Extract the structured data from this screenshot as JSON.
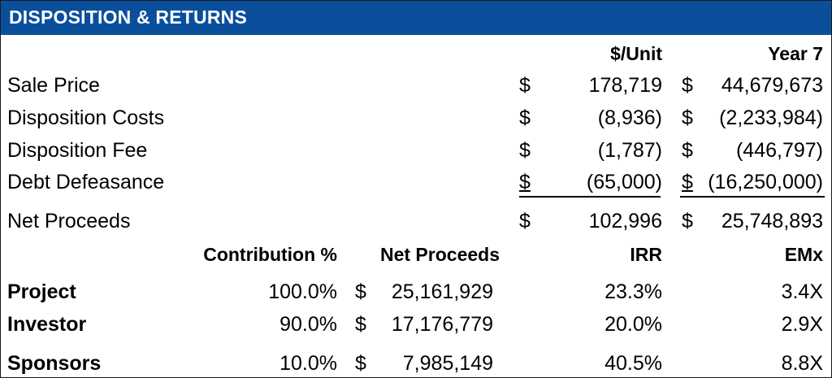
{
  "title": "DISPOSITION & RETURNS",
  "columns": {
    "per_unit": "$/Unit",
    "year": "Year 7"
  },
  "currency_symbol": "$",
  "line_items": [
    {
      "label": "Sale Price",
      "per_unit": "178,719",
      "year": "44,679,673"
    },
    {
      "label": "Disposition Costs",
      "per_unit": "(8,936)",
      "year": "(2,233,984)"
    },
    {
      "label": "Disposition Fee",
      "per_unit": "(1,787)",
      "year": "(446,797)"
    },
    {
      "label": "Debt Defeasance",
      "per_unit": "(65,000)",
      "year": "(16,250,000)"
    }
  ],
  "net": {
    "label": "Net Proceeds",
    "per_unit": "102,996",
    "year": "25,748,893"
  },
  "returns_headers": {
    "contribution": "Contribution %",
    "net_proceeds": "Net Proceeds",
    "irr": "IRR",
    "emx": "EMx"
  },
  "returns": [
    {
      "party": "Project",
      "contribution": "100.0%",
      "net_proceeds": "25,161,929",
      "irr": "23.3%",
      "emx": "3.4X"
    },
    {
      "party": "Investor",
      "contribution": "90.0%",
      "net_proceeds": "17,176,779",
      "irr": "20.0%",
      "emx": "2.9X"
    },
    {
      "party": "Sponsors",
      "contribution": "10.0%",
      "net_proceeds": "7,985,149",
      "irr": "40.5%",
      "emx": "8.8X"
    }
  ]
}
